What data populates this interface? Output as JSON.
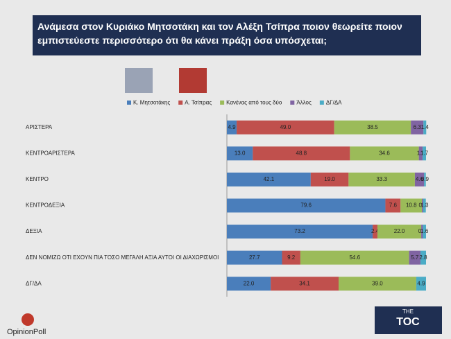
{
  "chart_data": {
    "type": "bar",
    "orientation": "horizontal",
    "stacked": true,
    "title": "Ανάμεσα στον Κυριάκο Μητσοτάκη και τον Αλέξη Τσίπρα ποιον θεωρείτε ποιον εμπιστεύεστε περισσότερο ότι θα κάνει πράξη όσα υπόσχεται;",
    "categories": [
      "ΑΡΙΣΤΕΡΑ",
      "ΚΕΝΤΡΟΑΡΙΣΤΕΡΑ",
      "ΚΕΝΤΡΟ",
      "ΚΕΝΤΡΟΔΕΞΙΑ",
      "ΔΕΞΙΑ",
      "ΔΕΝ ΝΟΜΙΖΩ ΟΤΙ ΕΧΟΥΝ ΠΙΑ ΤΟΣΟ ΜΕΓΑΛΗ ΑΞΙΑ ΑΥΤΟΙ ΟΙ ΔΙΑΧΩΡΙΣΜΟΙ",
      "ΔΓ/ΔΑ"
    ],
    "xlim": [
      0,
      100
    ],
    "series": [
      {
        "name": "Κ. Μητσοτάκης",
        "color": "#4a7ebb",
        "values": [
          4.9,
          13,
          42.1,
          79.6,
          73.2,
          27.7,
          22
        ],
        "value_labels": [
          "4.9",
          "13.0",
          "42.1",
          "79.6",
          "73.2",
          "27.7",
          "22.0"
        ]
      },
      {
        "name": "Α. Τσίπρας",
        "color": "#c0504d",
        "values": [
          49,
          48.8,
          19,
          7.6,
          2.4,
          9.2,
          34.1
        ],
        "value_labels": [
          "49.0",
          "48.8",
          "19.0",
          "7.6",
          "2.4",
          "9.2",
          "34.1"
        ]
      },
      {
        "name": "Κανένας από τους δύο",
        "color": "#9bbb59",
        "values": [
          38.5,
          34.6,
          33.3,
          10.8,
          22,
          54.6,
          39
        ],
        "value_labels": [
          "38.5",
          "34.6",
          "33.3",
          "10.8",
          "22.0",
          "54.6",
          "39.0"
        ]
      },
      {
        "name": "Άλλος",
        "color": "#8064a2",
        "values": [
          6.3,
          1.9,
          4.6,
          0.6,
          0.8,
          5.7,
          null
        ],
        "value_labels": [
          "6.3",
          "1.9",
          "4.6",
          "0.6",
          "0.8",
          "5.7",
          null
        ]
      },
      {
        "name": "ΔΓ/ΔΑ",
        "color": "#4bacc6",
        "values": [
          1.4,
          1.7,
          0.9,
          1.3,
          1.6,
          2.8,
          4.9
        ],
        "value_labels": [
          "1.4",
          "1.7",
          "0.9",
          "1.3",
          "1.6",
          "2.8",
          "4.9"
        ]
      }
    ]
  },
  "branding": {
    "left": "OpinionPoll",
    "right_top": "THE",
    "right_main": "TOC"
  }
}
